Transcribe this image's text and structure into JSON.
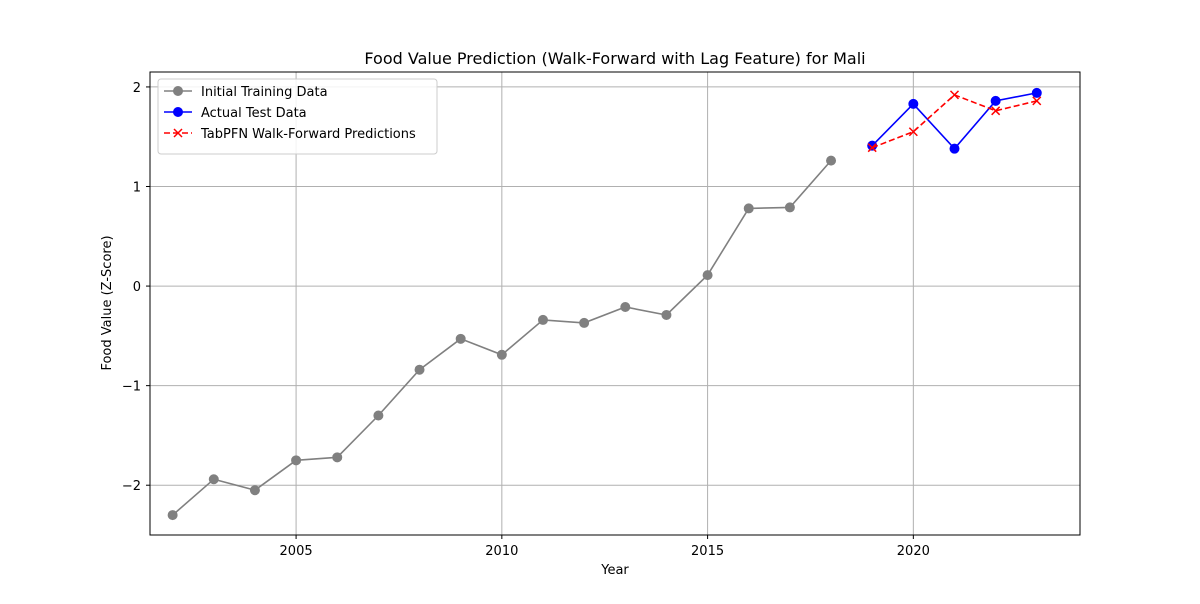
{
  "chart_data": {
    "type": "line",
    "title": "Food Value Prediction (Walk-Forward with Lag Feature) for Mali",
    "xlabel": "Year",
    "ylabel": "Food Value (Z-Score)",
    "xlim": [
      2001.45,
      2024.05
    ],
    "ylim": [
      -2.5,
      2.15
    ],
    "xticks": [
      2005,
      2010,
      2015,
      2020
    ],
    "yticks": [
      -2,
      -1,
      0,
      1,
      2
    ],
    "ytick_labels": [
      "−2",
      "−1",
      "0",
      "1",
      "2"
    ],
    "grid": true,
    "legend_position": "upper left",
    "series": [
      {
        "name": "Initial Training Data",
        "color": "#808080",
        "linestyle": "solid",
        "marker": "circle",
        "x": [
          2002,
          2003,
          2004,
          2005,
          2006,
          2007,
          2008,
          2009,
          2010,
          2011,
          2012,
          2013,
          2014,
          2015,
          2016,
          2017,
          2018
        ],
        "y": [
          -2.3,
          -1.94,
          -2.05,
          -1.75,
          -1.72,
          -1.3,
          -0.84,
          -0.53,
          -0.69,
          -0.34,
          -0.37,
          -0.21,
          -0.29,
          0.11,
          0.78,
          0.79,
          1.26
        ]
      },
      {
        "name": "Actual Test Data",
        "color": "#0000ff",
        "linestyle": "solid",
        "marker": "circle",
        "x": [
          2019,
          2020,
          2021,
          2022,
          2023
        ],
        "y": [
          1.41,
          1.83,
          1.38,
          1.86,
          1.94
        ]
      },
      {
        "name": "TabPFN Walk-Forward Predictions",
        "color": "#ff0000",
        "linestyle": "dashed",
        "marker": "x",
        "x": [
          2019,
          2020,
          2021,
          2022,
          2023
        ],
        "y": [
          1.39,
          1.55,
          1.92,
          1.76,
          1.86
        ]
      }
    ]
  }
}
